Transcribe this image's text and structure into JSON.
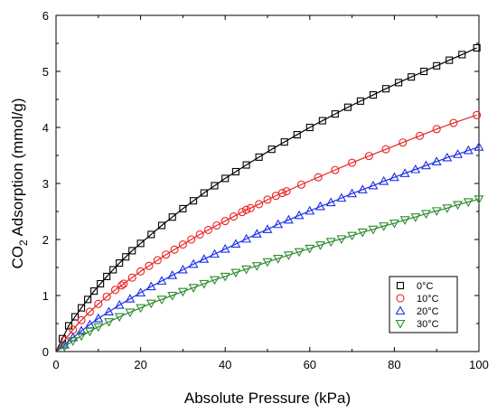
{
  "chart_data": {
    "type": "scatter",
    "title": "",
    "xlabel": "Absolute Pressure (kPa)",
    "ylabel_parts": [
      "CO",
      "2",
      " Adsorption (mmol/g)"
    ],
    "xlim": [
      0,
      100
    ],
    "ylim": [
      0,
      6
    ],
    "x_ticks": [
      0,
      20,
      40,
      60,
      80,
      100
    ],
    "y_ticks": [
      0,
      1,
      2,
      3,
      4,
      5,
      6
    ],
    "grid": false,
    "legend_position": "lower-right",
    "series": [
      {
        "name": "0°C",
        "color": "#000000",
        "marker": "square",
        "x": [
          1.5,
          3,
          4.5,
          6,
          7.5,
          9,
          10.5,
          12,
          13.5,
          15,
          16.5,
          18,
          20,
          22.5,
          25,
          27.5,
          30,
          32.5,
          35,
          37.5,
          40,
          42.5,
          45,
          48,
          51,
          54,
          57,
          60,
          63,
          66,
          69,
          72,
          75,
          78,
          81,
          84,
          87,
          90,
          93,
          96,
          99.5
        ],
        "y": [
          0.23,
          0.46,
          0.62,
          0.78,
          0.93,
          1.08,
          1.21,
          1.34,
          1.46,
          1.58,
          1.69,
          1.8,
          1.93,
          2.09,
          2.25,
          2.4,
          2.55,
          2.69,
          2.83,
          2.96,
          3.09,
          3.21,
          3.33,
          3.47,
          3.61,
          3.74,
          3.87,
          4.0,
          4.12,
          4.24,
          4.36,
          4.47,
          4.58,
          4.69,
          4.8,
          4.9,
          5.0,
          5.1,
          5.2,
          5.3,
          5.42
        ]
      },
      {
        "name": "10°C",
        "color": "#e8221f",
        "marker": "circle",
        "x": [
          2,
          4,
          6,
          8,
          10,
          12,
          14,
          15.5,
          16,
          18,
          20,
          22,
          24,
          26,
          28,
          30,
          32,
          34,
          36,
          38,
          40,
          42,
          44,
          45,
          46,
          48,
          50,
          52,
          53.5,
          54.5,
          58,
          62,
          66,
          70,
          74,
          78,
          82,
          86,
          90,
          94,
          99.5
        ],
        "y": [
          0.2,
          0.39,
          0.56,
          0.71,
          0.85,
          0.98,
          1.1,
          1.18,
          1.21,
          1.32,
          1.43,
          1.53,
          1.63,
          1.73,
          1.82,
          1.91,
          2.0,
          2.09,
          2.17,
          2.25,
          2.33,
          2.41,
          2.49,
          2.53,
          2.56,
          2.63,
          2.71,
          2.78,
          2.83,
          2.86,
          2.98,
          3.11,
          3.24,
          3.37,
          3.49,
          3.61,
          3.73,
          3.85,
          3.97,
          4.08,
          4.22
        ]
      },
      {
        "name": "20°C",
        "color": "#1a2ee8",
        "marker": "triangle-up",
        "x": [
          2,
          4,
          6,
          8,
          10,
          12.5,
          15,
          17.5,
          20,
          22.5,
          25,
          27.5,
          30,
          32.5,
          35,
          37.5,
          40,
          42.5,
          45,
          47.5,
          50,
          52.5,
          55,
          57.5,
          60,
          62.5,
          65,
          67.5,
          70,
          72.5,
          75,
          77.5,
          80,
          82.5,
          85,
          87.5,
          90,
          92.5,
          95,
          97.5,
          100
        ],
        "y": [
          0.12,
          0.25,
          0.37,
          0.48,
          0.59,
          0.71,
          0.83,
          0.94,
          1.05,
          1.16,
          1.26,
          1.36,
          1.46,
          1.56,
          1.65,
          1.74,
          1.83,
          1.92,
          2.01,
          2.1,
          2.18,
          2.27,
          2.35,
          2.43,
          2.51,
          2.59,
          2.66,
          2.74,
          2.82,
          2.89,
          2.96,
          3.04,
          3.11,
          3.18,
          3.25,
          3.32,
          3.39,
          3.46,
          3.52,
          3.59,
          3.65
        ]
      },
      {
        "name": "30°C",
        "color": "#2e8b2e",
        "marker": "triangle-down",
        "x": [
          2,
          4,
          6,
          8,
          10,
          12.5,
          15,
          17.5,
          20,
          22.5,
          25,
          27.5,
          30,
          32.5,
          35,
          37.5,
          40,
          42.5,
          45,
          47.5,
          50,
          52.5,
          55,
          57.5,
          60,
          62.5,
          65,
          67.5,
          70,
          72.5,
          75,
          77.5,
          80,
          82.5,
          85,
          87.5,
          90,
          92.5,
          95,
          97.5,
          100
        ],
        "y": [
          0.09,
          0.19,
          0.28,
          0.36,
          0.44,
          0.53,
          0.62,
          0.7,
          0.78,
          0.86,
          0.93,
          1.0,
          1.07,
          1.14,
          1.21,
          1.28,
          1.34,
          1.41,
          1.47,
          1.53,
          1.6,
          1.66,
          1.72,
          1.78,
          1.84,
          1.9,
          1.96,
          2.01,
          2.07,
          2.13,
          2.18,
          2.24,
          2.29,
          2.35,
          2.4,
          2.46,
          2.51,
          2.56,
          2.62,
          2.67,
          2.72
        ]
      }
    ]
  }
}
